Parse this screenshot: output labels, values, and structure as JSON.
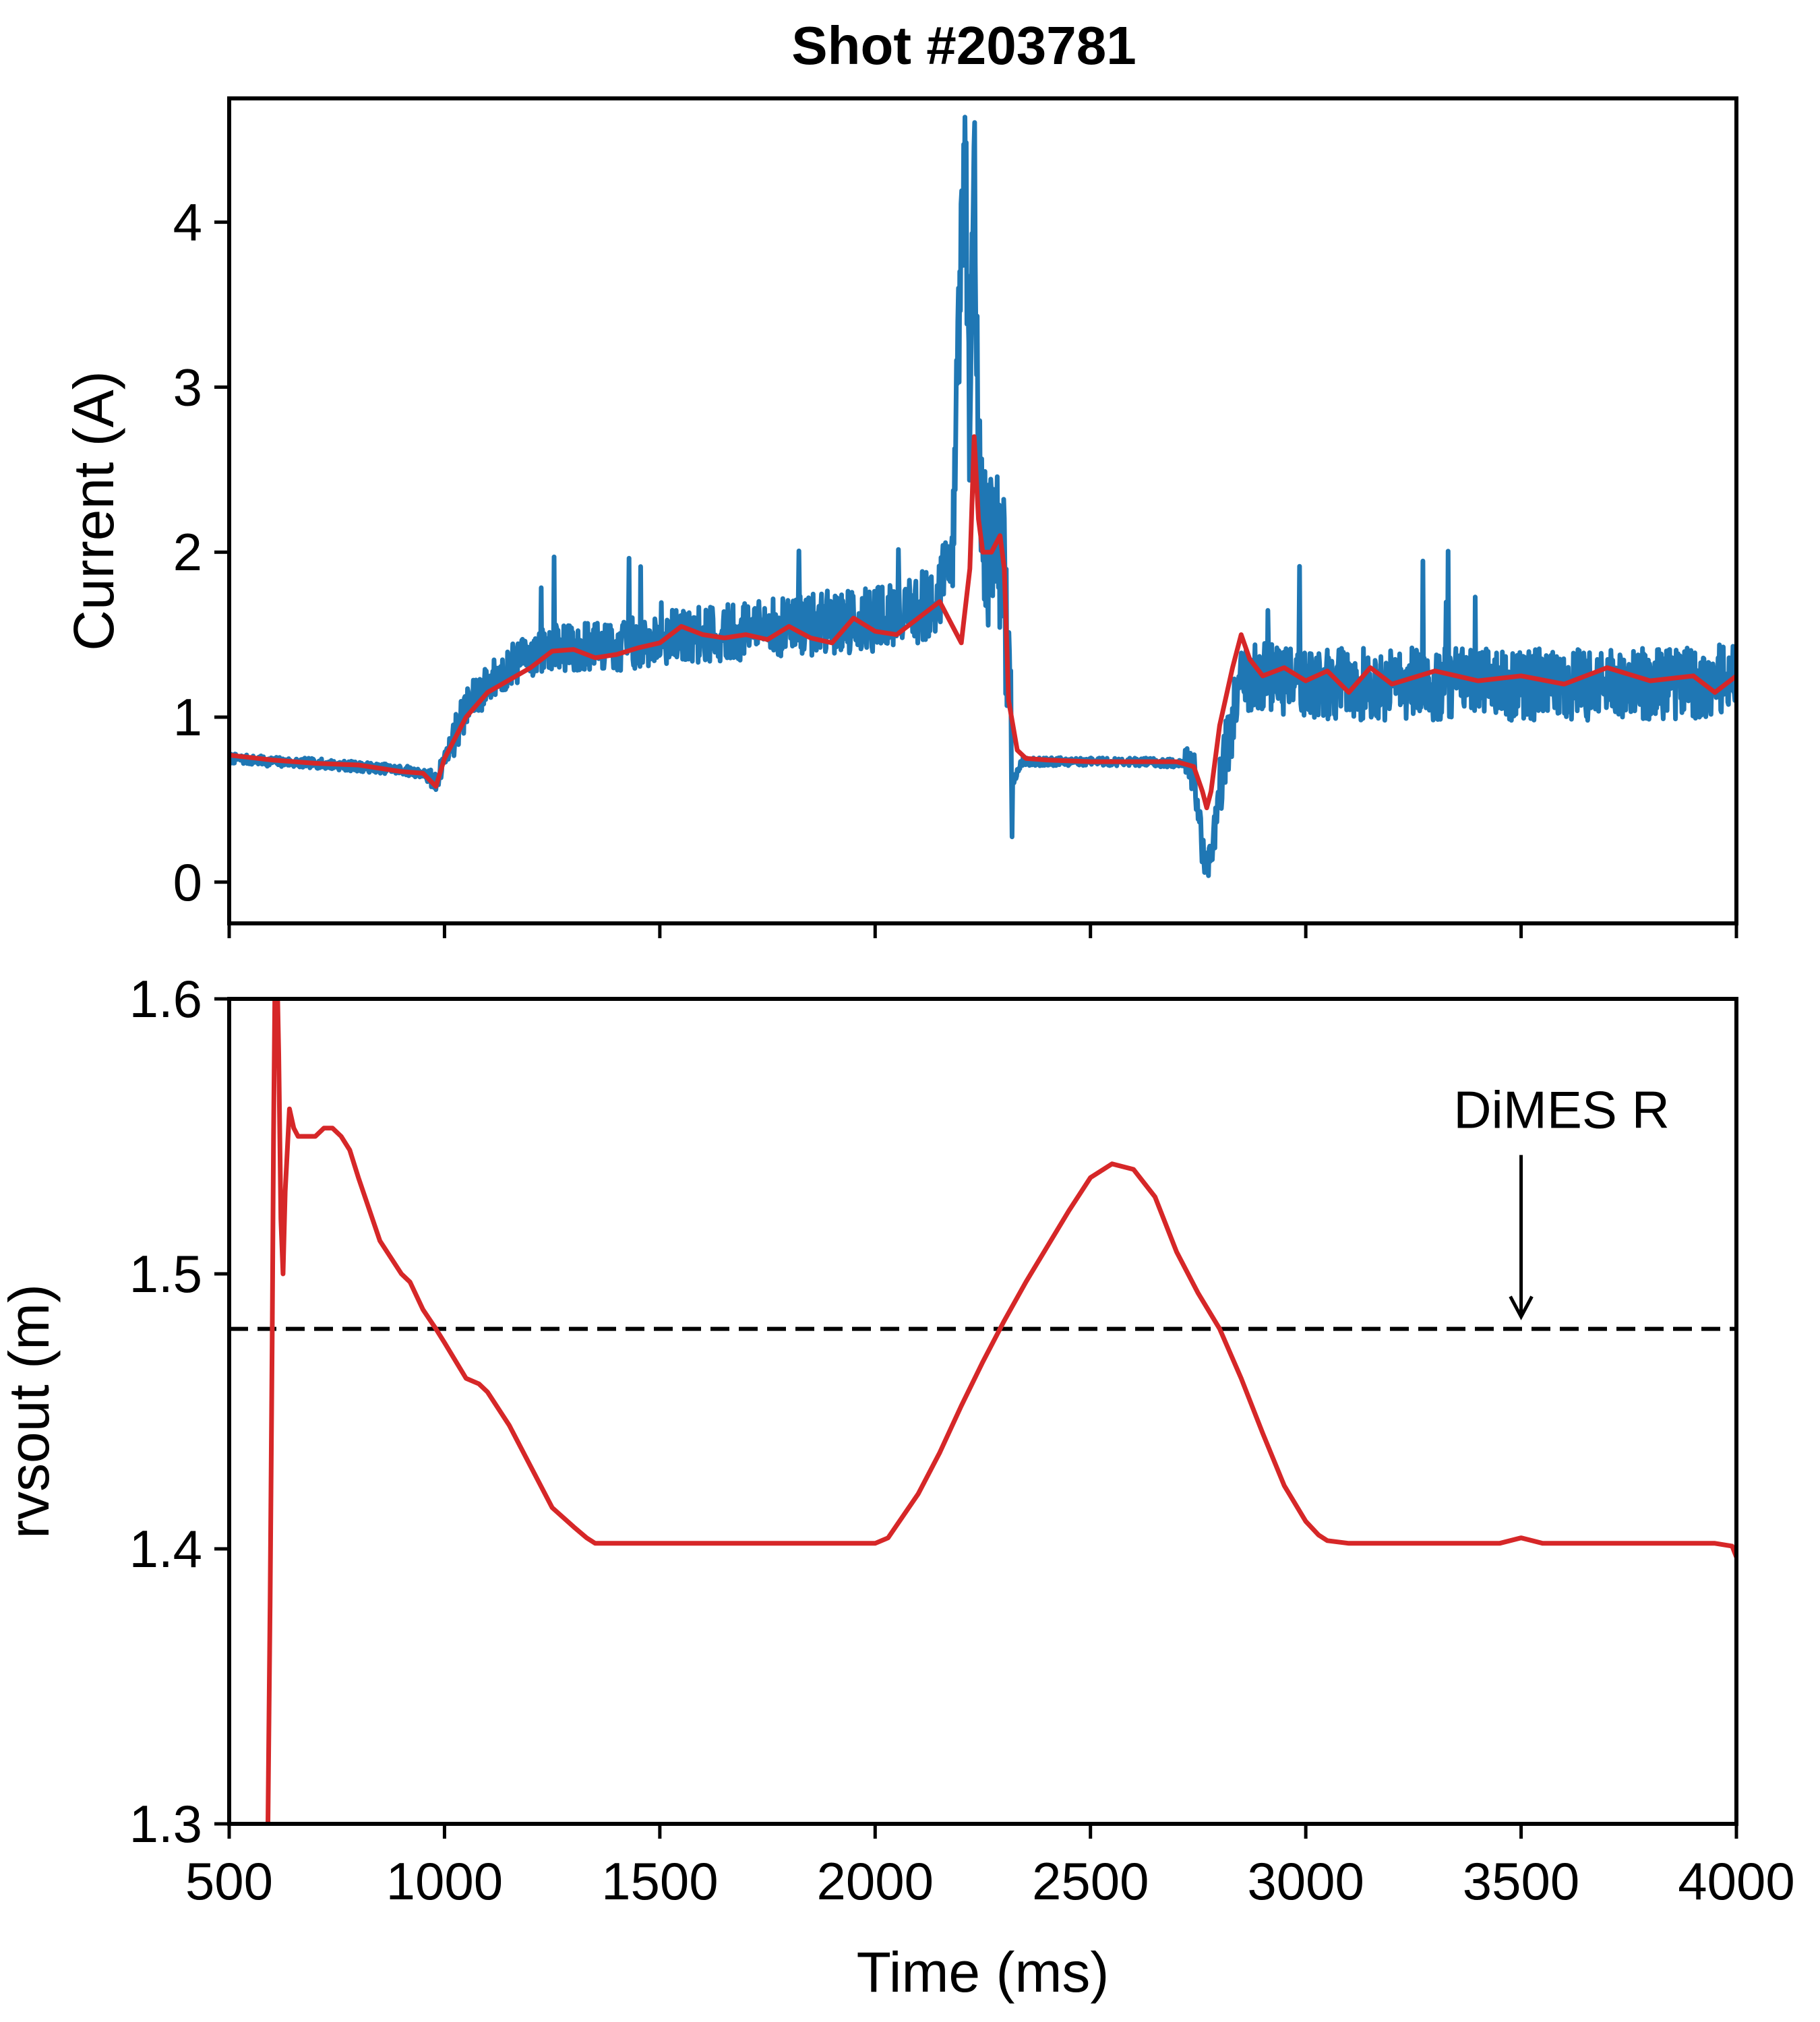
{
  "figure": {
    "title": "Shot #203781"
  },
  "chart_data": [
    {
      "type": "line",
      "title": "Shot #203781",
      "xlabel": "",
      "ylabel": "Current (A)",
      "xlim": [
        500,
        4000
      ],
      "ylim": [
        -0.25,
        4.75
      ],
      "xticks": [
        500,
        1000,
        1500,
        2000,
        2500,
        3000,
        3500,
        4000
      ],
      "show_xtick_labels": false,
      "yticks": [
        0,
        1,
        2,
        3,
        4
      ],
      "ytick_labels": [
        "0",
        "1",
        "2",
        "3",
        "4"
      ],
      "grid": false,
      "colors": {
        "raw": "#1f77b4",
        "smoothed": "#d62728"
      },
      "series": [
        {
          "x": [
            500,
            600,
            700,
            800,
            900,
            950,
            980,
            1000,
            1050,
            1100,
            1150,
            1200,
            1250,
            1300,
            1400,
            1500,
            1600,
            1700,
            1800,
            1900,
            2000,
            2100,
            2150,
            2180,
            2200,
            2210,
            2220,
            2230,
            2240,
            2260,
            2280,
            2300,
            2320,
            2340,
            2400,
            2500,
            2600,
            2700,
            2740,
            2760,
            2780,
            2800,
            2850,
            2900,
            3000,
            3100,
            3200,
            3300,
            3400,
            3500,
            3600,
            3700,
            3800,
            3900,
            4000
          ],
          "y": [
            0.75,
            0.73,
            0.72,
            0.7,
            0.68,
            0.66,
            0.6,
            0.75,
            1.05,
            1.2,
            1.3,
            1.38,
            1.42,
            1.42,
            1.43,
            1.48,
            1.5,
            1.52,
            1.55,
            1.58,
            1.6,
            1.65,
            1.75,
            2.1,
            3.8,
            4.4,
            2.6,
            4.3,
            2.4,
            2.0,
            2.2,
            1.8,
            0.6,
            0.73,
            0.73,
            0.73,
            0.73,
            0.72,
            0.68,
            0.2,
            0.1,
            0.6,
            1.25,
            1.25,
            1.2,
            1.2,
            1.2,
            1.2,
            1.2,
            1.2,
            1.2,
            1.2,
            1.2,
            1.2,
            1.25
          ]
        },
        {
          "x": [
            500,
            600,
            700,
            800,
            900,
            950,
            980,
            1000,
            1050,
            1100,
            1200,
            1250,
            1300,
            1350,
            1400,
            1450,
            1500,
            1550,
            1600,
            1650,
            1700,
            1750,
            1800,
            1850,
            1900,
            1950,
            2000,
            2050,
            2100,
            2150,
            2180,
            2200,
            2220,
            2230,
            2240,
            2250,
            2270,
            2290,
            2300,
            2310,
            2330,
            2350,
            2400,
            2500,
            2600,
            2700,
            2740,
            2760,
            2770,
            2780,
            2800,
            2830,
            2850,
            2870,
            2900,
            2950,
            3000,
            3050,
            3100,
            3150,
            3200,
            3300,
            3400,
            3500,
            3600,
            3700,
            3800,
            3900,
            3950,
            4000
          ],
          "y": [
            0.77,
            0.74,
            0.72,
            0.71,
            0.67,
            0.66,
            0.58,
            0.75,
            1.0,
            1.15,
            1.3,
            1.4,
            1.41,
            1.36,
            1.38,
            1.42,
            1.45,
            1.55,
            1.5,
            1.48,
            1.5,
            1.47,
            1.55,
            1.48,
            1.45,
            1.6,
            1.52,
            1.5,
            1.6,
            1.7,
            1.55,
            1.45,
            1.9,
            2.7,
            2.2,
            2.0,
            2.0,
            2.1,
            1.9,
            1.1,
            0.8,
            0.75,
            0.74,
            0.73,
            0.73,
            0.73,
            0.7,
            0.55,
            0.45,
            0.55,
            0.95,
            1.3,
            1.5,
            1.35,
            1.25,
            1.3,
            1.22,
            1.28,
            1.15,
            1.3,
            1.2,
            1.28,
            1.22,
            1.25,
            1.2,
            1.3,
            1.22,
            1.25,
            1.15,
            1.25
          ]
        }
      ]
    },
    {
      "type": "line",
      "xlabel": "Time (ms)",
      "ylabel": "rvsout (m)",
      "xlim": [
        500,
        4000
      ],
      "ylim": [
        1.3,
        1.6
      ],
      "xticks": [
        500,
        1000,
        1500,
        2000,
        2500,
        3000,
        3500,
        4000
      ],
      "xtick_labels": [
        "500",
        "1000",
        "1500",
        "2000",
        "2500",
        "3000",
        "3500",
        "4000"
      ],
      "yticks": [
        1.3,
        1.4,
        1.5,
        1.6
      ],
      "ytick_labels": [
        "1.3",
        "1.4",
        "1.5",
        "1.6"
      ],
      "grid": false,
      "colors": {
        "line": "#d62728",
        "reference": "#000000"
      },
      "series": [
        {
          "x": [
            590,
            595,
            600,
            603,
            606,
            610,
            615,
            620,
            625,
            630,
            640,
            650,
            660,
            670,
            680,
            700,
            720,
            740,
            760,
            780,
            800,
            850,
            900,
            920,
            950,
            980,
            1000,
            1050,
            1080,
            1100,
            1150,
            1200,
            1250,
            1300,
            1330,
            1350,
            1400,
            1450,
            1500,
            1550,
            1600,
            1650,
            1700,
            1750,
            1800,
            1850,
            1900,
            1950,
            2000,
            2030,
            2100,
            2150,
            2200,
            2250,
            2300,
            2350,
            2400,
            2450,
            2500,
            2550,
            2600,
            2650,
            2700,
            2750,
            2800,
            2850,
            2900,
            2950,
            3000,
            3030,
            3050,
            3100,
            3150,
            3200,
            3250,
            3300,
            3350,
            3400,
            3450,
            3500,
            3550,
            3600,
            3650,
            3700,
            3750,
            3800,
            3850,
            3900,
            3950,
            3990,
            4000
          ],
          "y": [
            1.3,
            1.38,
            1.48,
            1.55,
            1.6,
            1.62,
            1.58,
            1.52,
            1.5,
            1.53,
            1.56,
            1.553,
            1.55,
            1.55,
            1.55,
            1.55,
            1.553,
            1.553,
            1.55,
            1.545,
            1.535,
            1.512,
            1.5,
            1.497,
            1.487,
            1.48,
            1.475,
            1.462,
            1.46,
            1.457,
            1.445,
            1.43,
            1.415,
            1.408,
            1.404,
            1.402,
            1.402,
            1.402,
            1.402,
            1.402,
            1.402,
            1.402,
            1.402,
            1.402,
            1.402,
            1.402,
            1.402,
            1.402,
            1.402,
            1.404,
            1.42,
            1.435,
            1.452,
            1.468,
            1.483,
            1.497,
            1.51,
            1.523,
            1.535,
            1.54,
            1.538,
            1.528,
            1.508,
            1.493,
            1.48,
            1.462,
            1.442,
            1.423,
            1.41,
            1.405,
            1.403,
            1.402,
            1.402,
            1.402,
            1.402,
            1.402,
            1.402,
            1.402,
            1.402,
            1.404,
            1.402,
            1.402,
            1.402,
            1.402,
            1.402,
            1.402,
            1.402,
            1.402,
            1.402,
            1.401,
            1.397
          ]
        }
      ],
      "reference_line": {
        "y": 1.48,
        "style": "dashed"
      },
      "annotations": [
        {
          "text": "DiMES R",
          "x": 3500,
          "y": 1.48,
          "arrow": "down"
        }
      ]
    }
  ]
}
